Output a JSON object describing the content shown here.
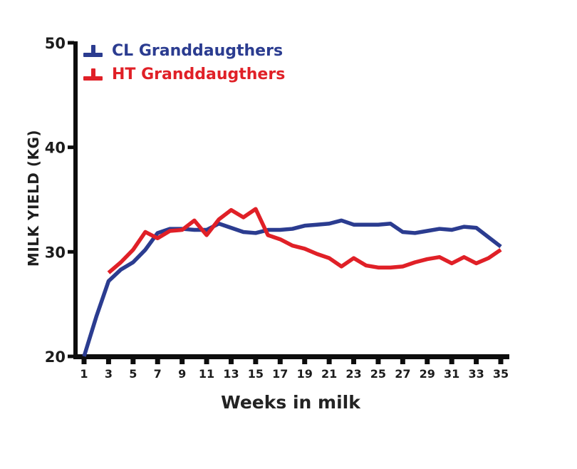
{
  "chart_data": {
    "type": "line",
    "x": [
      1,
      2,
      3,
      4,
      5,
      6,
      7,
      8,
      9,
      10,
      11,
      12,
      13,
      14,
      15,
      16,
      17,
      18,
      19,
      20,
      21,
      22,
      23,
      24,
      25,
      26,
      27,
      28,
      29,
      30,
      31,
      32,
      33,
      34,
      35
    ],
    "series": [
      {
        "name": "CL Granddaugthers",
        "color": "#2b3c90",
        "values": [
          20.0,
          23.8,
          27.2,
          28.3,
          29.0,
          30.2,
          31.8,
          32.2,
          32.2,
          32.1,
          32.1,
          32.7,
          32.3,
          31.9,
          31.8,
          32.1,
          32.1,
          32.2,
          32.5,
          32.6,
          32.7,
          33.0,
          32.6,
          32.6,
          32.6,
          32.7,
          31.9,
          31.8,
          32.0,
          32.2,
          32.1,
          32.4,
          32.3,
          31.4,
          30.5
        ]
      },
      {
        "name": "HT Granddaugthers",
        "color": "#e02027",
        "values": [
          null,
          null,
          28.0,
          29.0,
          30.2,
          31.9,
          31.3,
          32.0,
          32.1,
          33.0,
          31.6,
          33.1,
          34.0,
          33.3,
          34.1,
          31.6,
          31.2,
          30.6,
          30.3,
          29.8,
          29.4,
          28.6,
          29.4,
          28.7,
          28.5,
          28.5,
          28.6,
          29.0,
          29.3,
          29.5,
          28.9,
          29.5,
          28.9,
          29.4,
          30.2
        ]
      }
    ],
    "title": "",
    "xlabel": "Weeks in milk",
    "ylabel": "MILK YIELD (KG)",
    "ylim": [
      20,
      50
    ],
    "xlim": [
      1,
      35
    ],
    "yticks": [
      20,
      30,
      40,
      50
    ],
    "xticks": [
      1,
      3,
      5,
      7,
      9,
      11,
      13,
      15,
      17,
      19,
      21,
      23,
      25,
      27,
      29,
      31,
      33,
      35
    ],
    "grid": false,
    "legend_position": "top-left-inside",
    "axis_color": "#0d0d0d",
    "line_width": 5.5
  },
  "legend": {
    "items": [
      {
        "label": "CL Granddaugthers",
        "color": "#2b3c90",
        "marker": "up-tack-icon"
      },
      {
        "label": "HT Granddaugthers",
        "color": "#e02027",
        "marker": "up-tack-icon"
      }
    ]
  },
  "axes": {
    "y_title": "MILK YIELD (KG)",
    "x_title": "Weeks in milk"
  }
}
